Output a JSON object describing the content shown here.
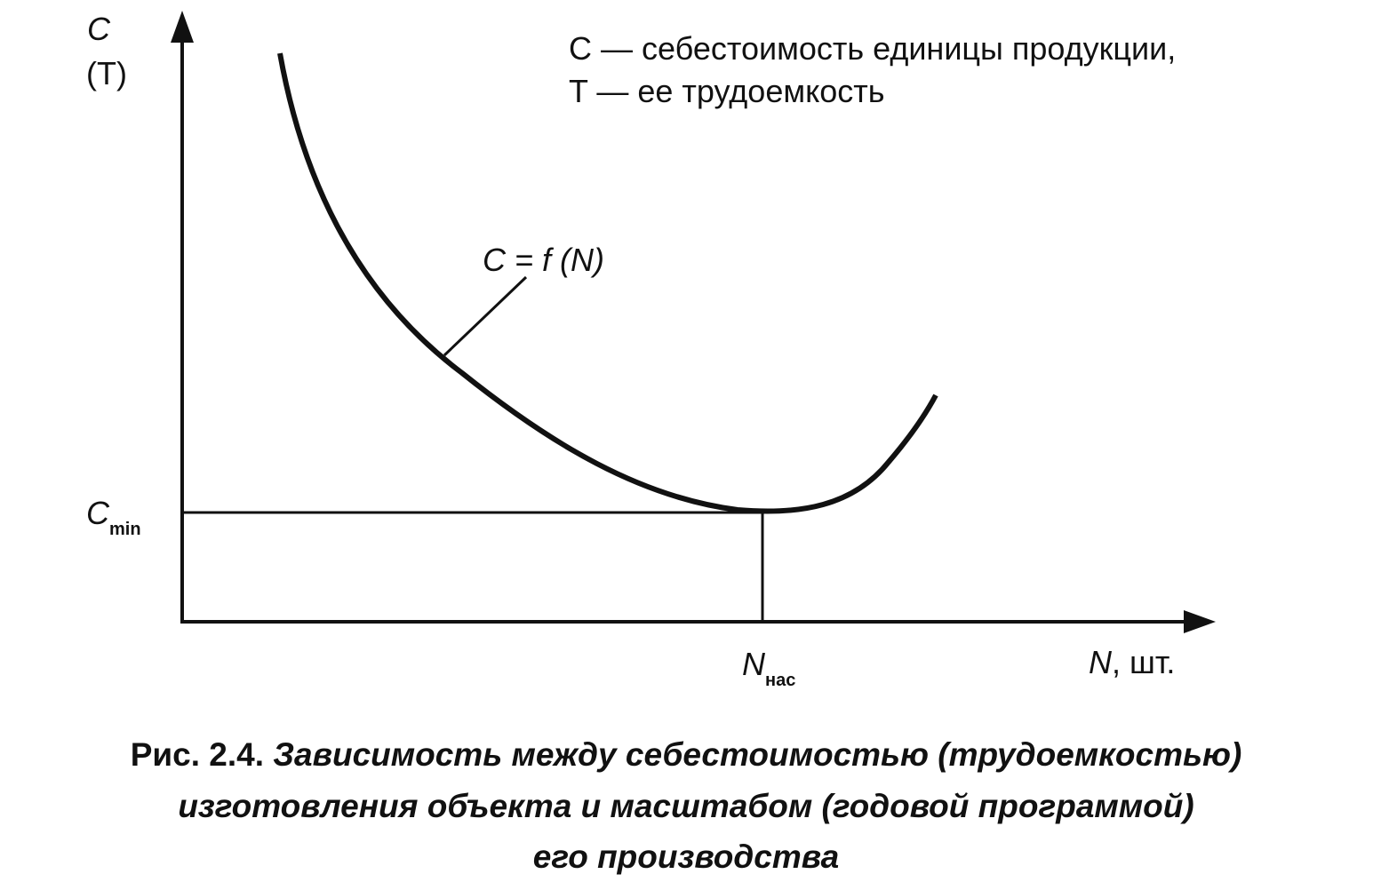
{
  "diagram": {
    "y_axis": {
      "label": "C",
      "label_alt": "(T)"
    },
    "x_axis": {
      "variable": "N",
      "unit": ", шт."
    },
    "legend": {
      "line_1": "C — себестоимость единицы продукции,",
      "line_2": "T — ее трудоемкость"
    },
    "curve_label": "C = f (N)",
    "c_min": {
      "symbol": "C",
      "subscript": "min"
    },
    "n_sat": {
      "symbol": "N",
      "subscript": "нас"
    },
    "caption": {
      "number": "Рис. 2.4.",
      "line_1": "Зависимость между себестоимостью (трудоемкостью)",
      "line_2": "изготовления объекта и масштабом (годовой программой)",
      "line_3": "его производства"
    }
  }
}
